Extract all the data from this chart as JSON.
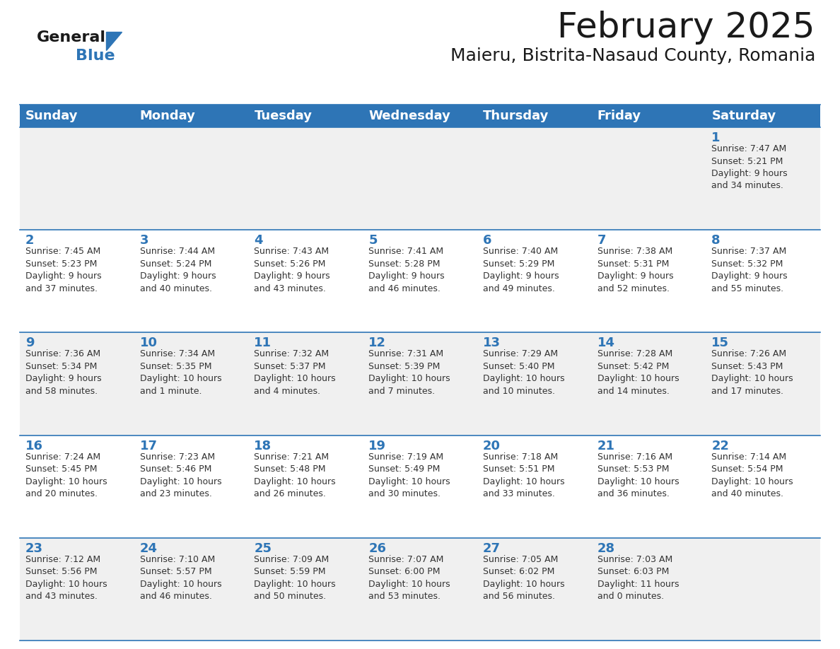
{
  "title": "February 2025",
  "subtitle": "Maieru, Bistrita-Nasaud County, Romania",
  "header_color": "#2E75B6",
  "header_text_color": "#FFFFFF",
  "border_color": "#2E75B6",
  "cell_bg_color": "#FFFFFF",
  "alt_cell_bg": "#F0F0F0",
  "days_of_week": [
    "Sunday",
    "Monday",
    "Tuesday",
    "Wednesday",
    "Thursday",
    "Friday",
    "Saturday"
  ],
  "title_fontsize": 36,
  "subtitle_fontsize": 18,
  "day_num_fontsize": 13,
  "cell_text_fontsize": 9,
  "header_row_fontsize": 13,
  "calendar_data": [
    [
      null,
      null,
      null,
      null,
      null,
      null,
      {
        "day": "1",
        "sunrise": "7:47 AM",
        "sunset": "5:21 PM",
        "daylight": "9 hours\nand 34 minutes."
      }
    ],
    [
      {
        "day": "2",
        "sunrise": "7:45 AM",
        "sunset": "5:23 PM",
        "daylight": "9 hours\nand 37 minutes."
      },
      {
        "day": "3",
        "sunrise": "7:44 AM",
        "sunset": "5:24 PM",
        "daylight": "9 hours\nand 40 minutes."
      },
      {
        "day": "4",
        "sunrise": "7:43 AM",
        "sunset": "5:26 PM",
        "daylight": "9 hours\nand 43 minutes."
      },
      {
        "day": "5",
        "sunrise": "7:41 AM",
        "sunset": "5:28 PM",
        "daylight": "9 hours\nand 46 minutes."
      },
      {
        "day": "6",
        "sunrise": "7:40 AM",
        "sunset": "5:29 PM",
        "daylight": "9 hours\nand 49 minutes."
      },
      {
        "day": "7",
        "sunrise": "7:38 AM",
        "sunset": "5:31 PM",
        "daylight": "9 hours\nand 52 minutes."
      },
      {
        "day": "8",
        "sunrise": "7:37 AM",
        "sunset": "5:32 PM",
        "daylight": "9 hours\nand 55 minutes."
      }
    ],
    [
      {
        "day": "9",
        "sunrise": "7:36 AM",
        "sunset": "5:34 PM",
        "daylight": "9 hours\nand 58 minutes."
      },
      {
        "day": "10",
        "sunrise": "7:34 AM",
        "sunset": "5:35 PM",
        "daylight": "10 hours\nand 1 minute."
      },
      {
        "day": "11",
        "sunrise": "7:32 AM",
        "sunset": "5:37 PM",
        "daylight": "10 hours\nand 4 minutes."
      },
      {
        "day": "12",
        "sunrise": "7:31 AM",
        "sunset": "5:39 PM",
        "daylight": "10 hours\nand 7 minutes."
      },
      {
        "day": "13",
        "sunrise": "7:29 AM",
        "sunset": "5:40 PM",
        "daylight": "10 hours\nand 10 minutes."
      },
      {
        "day": "14",
        "sunrise": "7:28 AM",
        "sunset": "5:42 PM",
        "daylight": "10 hours\nand 14 minutes."
      },
      {
        "day": "15",
        "sunrise": "7:26 AM",
        "sunset": "5:43 PM",
        "daylight": "10 hours\nand 17 minutes."
      }
    ],
    [
      {
        "day": "16",
        "sunrise": "7:24 AM",
        "sunset": "5:45 PM",
        "daylight": "10 hours\nand 20 minutes."
      },
      {
        "day": "17",
        "sunrise": "7:23 AM",
        "sunset": "5:46 PM",
        "daylight": "10 hours\nand 23 minutes."
      },
      {
        "day": "18",
        "sunrise": "7:21 AM",
        "sunset": "5:48 PM",
        "daylight": "10 hours\nand 26 minutes."
      },
      {
        "day": "19",
        "sunrise": "7:19 AM",
        "sunset": "5:49 PM",
        "daylight": "10 hours\nand 30 minutes."
      },
      {
        "day": "20",
        "sunrise": "7:18 AM",
        "sunset": "5:51 PM",
        "daylight": "10 hours\nand 33 minutes."
      },
      {
        "day": "21",
        "sunrise": "7:16 AM",
        "sunset": "5:53 PM",
        "daylight": "10 hours\nand 36 minutes."
      },
      {
        "day": "22",
        "sunrise": "7:14 AM",
        "sunset": "5:54 PM",
        "daylight": "10 hours\nand 40 minutes."
      }
    ],
    [
      {
        "day": "23",
        "sunrise": "7:12 AM",
        "sunset": "5:56 PM",
        "daylight": "10 hours\nand 43 minutes."
      },
      {
        "day": "24",
        "sunrise": "7:10 AM",
        "sunset": "5:57 PM",
        "daylight": "10 hours\nand 46 minutes."
      },
      {
        "day": "25",
        "sunrise": "7:09 AM",
        "sunset": "5:59 PM",
        "daylight": "10 hours\nand 50 minutes."
      },
      {
        "day": "26",
        "sunrise": "7:07 AM",
        "sunset": "6:00 PM",
        "daylight": "10 hours\nand 53 minutes."
      },
      {
        "day": "27",
        "sunrise": "7:05 AM",
        "sunset": "6:02 PM",
        "daylight": "10 hours\nand 56 minutes."
      },
      {
        "day": "28",
        "sunrise": "7:03 AM",
        "sunset": "6:03 PM",
        "daylight": "11 hours\nand 0 minutes."
      },
      null
    ]
  ]
}
